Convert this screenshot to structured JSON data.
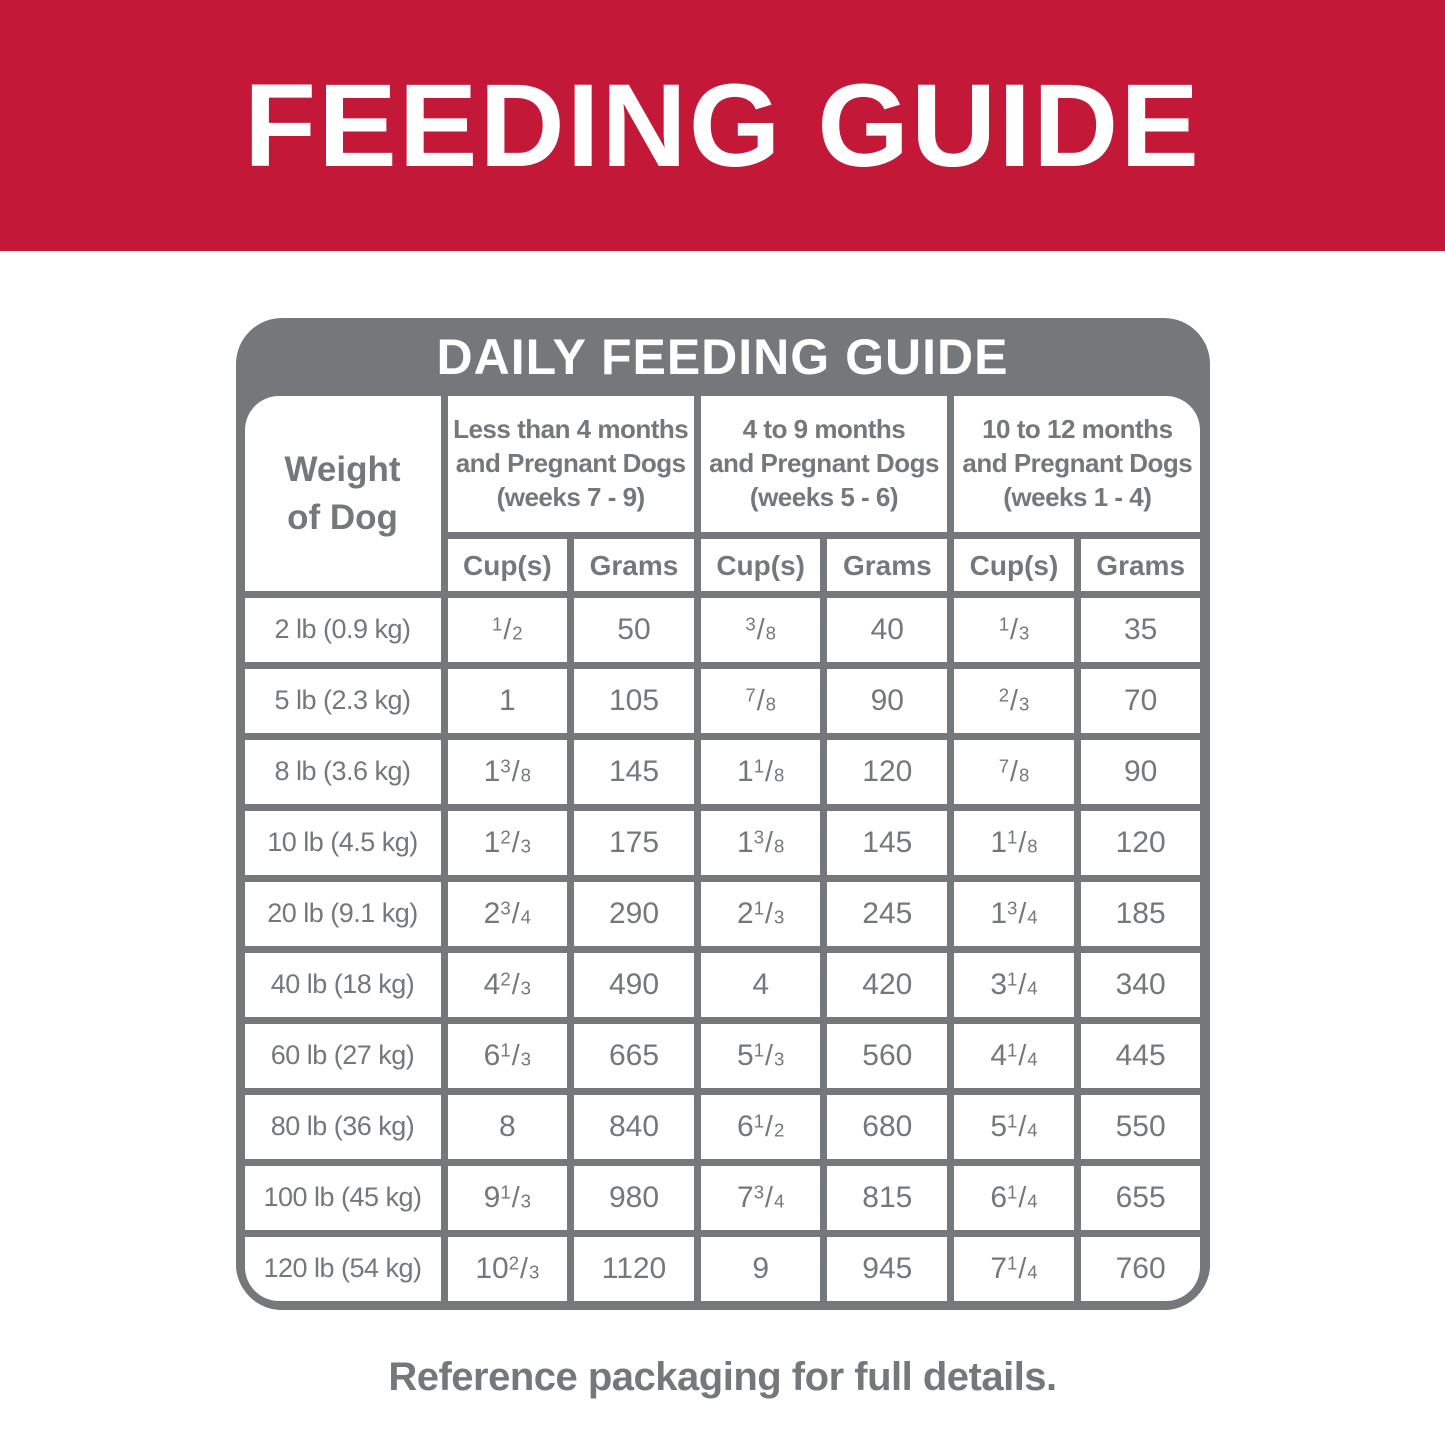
{
  "banner": {
    "title": "FEEDING GUIDE"
  },
  "table": {
    "title": "DAILY FEEDING GUIDE",
    "weight_header_lines": [
      "Weight",
      "of Dog"
    ],
    "column_groups": [
      {
        "lines": [
          "Less than 4 months",
          "and Pregnant Dogs",
          "(weeks 7 - 9)"
        ]
      },
      {
        "lines": [
          "4 to 9 months",
          "and Pregnant Dogs",
          "(weeks 5 - 6)"
        ]
      },
      {
        "lines": [
          "10 to 12 months",
          "and Pregnant Dogs",
          "(weeks 1 - 4)"
        ]
      }
    ],
    "sub_headers": [
      "Cup(s)",
      "Grams"
    ],
    "rows": [
      {
        "weight": "2 lb (0.9 kg)",
        "values": [
          "1/2",
          "50",
          "3/8",
          "40",
          "1/3",
          "35"
        ]
      },
      {
        "weight": "5 lb (2.3 kg)",
        "values": [
          "1",
          "105",
          "7/8",
          "90",
          "2/3",
          "70"
        ]
      },
      {
        "weight": "8 lb (3.6 kg)",
        "values": [
          "1 3/8",
          "145",
          "1 1/8",
          "120",
          "7/8",
          "90"
        ]
      },
      {
        "weight": "10 lb (4.5 kg)",
        "values": [
          "1 2/3",
          "175",
          "1 3/8",
          "145",
          "1 1/8",
          "120"
        ]
      },
      {
        "weight": "20 lb (9.1 kg)",
        "values": [
          "2 3/4",
          "290",
          "2 1/3",
          "245",
          "1 3/4",
          "185"
        ]
      },
      {
        "weight": "40 lb (18 kg)",
        "values": [
          "4 2/3",
          "490",
          "4",
          "420",
          "3 1/4",
          "340"
        ]
      },
      {
        "weight": "60 lb (27 kg)",
        "values": [
          "6 1/3",
          "665",
          "5 1/3",
          "560",
          "4 1/4",
          "445"
        ]
      },
      {
        "weight": "80 lb (36 kg)",
        "values": [
          "8",
          "840",
          "6 1/2",
          "680",
          "5 1/4",
          "550"
        ]
      },
      {
        "weight": "100 lb (45 kg)",
        "values": [
          "9 1/3",
          "980",
          "7 3/4",
          "815",
          "6 1/4",
          "655"
        ]
      },
      {
        "weight": "120 lb (54 kg)",
        "values": [
          "10 2/3",
          "1120",
          "9",
          "945",
          "7 1/4",
          "760"
        ]
      }
    ]
  },
  "footer": {
    "note": "Reference packaging for full details."
  },
  "colors": {
    "banner_red": "#C31837",
    "frame_gray": "#75787B",
    "text_gray": "#75787B",
    "cell_white": "#FFFFFF"
  }
}
